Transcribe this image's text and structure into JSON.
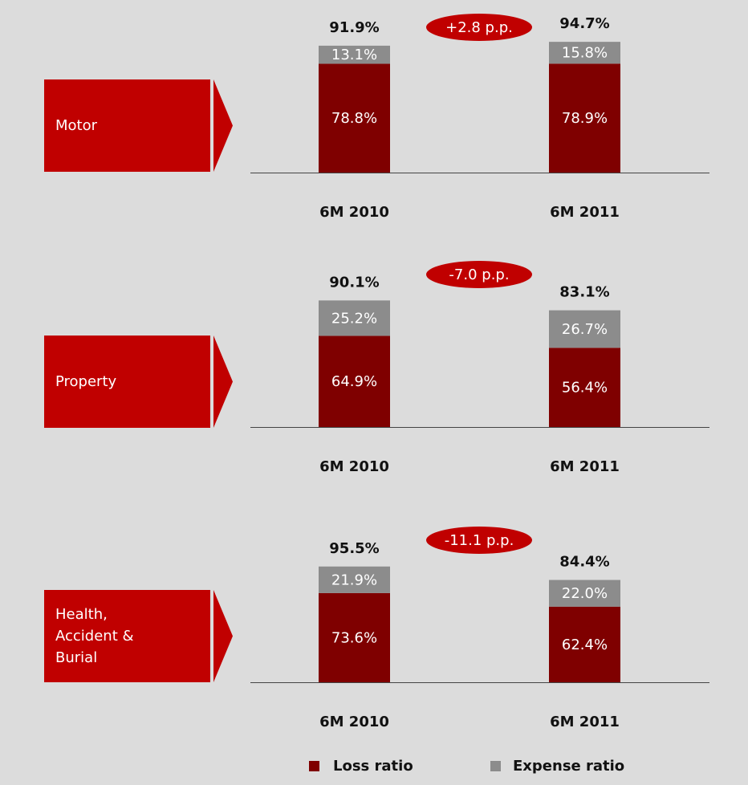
{
  "chart_data": [
    {
      "type": "bar",
      "stacked": true,
      "title": "Motor",
      "annotation": "+2.8 p.p.",
      "categories": [
        "6M 2010",
        "6M 2011"
      ],
      "ylim": [
        0,
        100
      ],
      "series": [
        {
          "color": "#7f0000",
          "values": [
            78.8,
            78.9
          ],
          "value_labels": [
            "78.8%",
            "78.9%"
          ]
        },
        {
          "color": "#8c8c8c",
          "values": [
            13.1,
            15.8
          ],
          "value_labels": [
            "13.1%",
            "15.8%"
          ]
        }
      ],
      "totals": [
        91.9,
        94.7
      ],
      "total_labels": [
        "91.9%",
        "94.7%"
      ]
    },
    {
      "type": "bar",
      "stacked": true,
      "title": "Property",
      "annotation": "-7.0 p.p.",
      "categories": [
        "6M 2010",
        "6M 2011"
      ],
      "ylim": [
        0,
        100
      ],
      "series": [
        {
          "color": "#7f0000",
          "values": [
            64.9,
            56.4
          ],
          "value_labels": [
            "64.9%",
            "56.4%"
          ]
        },
        {
          "color": "#8c8c8c",
          "values": [
            25.2,
            26.7
          ],
          "value_labels": [
            "25.2%",
            "26.7%"
          ]
        }
      ],
      "totals": [
        90.1,
        83.1
      ],
      "total_labels": [
        "90.1%",
        "83.1%"
      ]
    },
    {
      "type": "bar",
      "stacked": true,
      "title": "Health, Accident & Burial",
      "annotation": "-11.1 p.p.",
      "categories": [
        "6M 2010",
        "6M 2011"
      ],
      "ylim": [
        0,
        100
      ],
      "legend": "bottom",
      "series": [
        {
          "name": "Loss ratio",
          "color": "#7f0000",
          "values": [
            73.6,
            62.4
          ],
          "value_labels": [
            "73.6%",
            "62.4%"
          ]
        },
        {
          "name": "Expense ratio",
          "color": "#8c8c8c",
          "values": [
            21.9,
            22.0
          ],
          "value_labels": [
            "21.9%",
            "22.0%"
          ]
        }
      ],
      "totals": [
        95.5,
        84.4
      ],
      "total_labels": [
        "95.5%",
        "84.4%"
      ]
    }
  ]
}
